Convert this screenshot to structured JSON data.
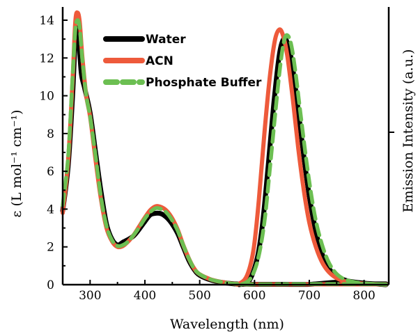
{
  "chart_data": {
    "type": "line",
    "xlabel": "Wavelength (nm)",
    "ylabel_left": "ε (L mol⁻¹ cm⁻¹)",
    "ylabel_right": "Emission Intensity (a.u.)",
    "xlim": [
      250,
      845
    ],
    "ylim": [
      0,
      14.7
    ],
    "x_ticks": [
      300,
      400,
      500,
      600,
      700,
      800
    ],
    "y_ticks": [
      0,
      2,
      4,
      6,
      8,
      10,
      12,
      14
    ],
    "grid": false,
    "legend_position": "top-left",
    "series": [
      {
        "name": "Water",
        "color": "#000000",
        "dash": "solid",
        "absorption": [
          [
            250,
            3.9
          ],
          [
            260,
            6.3
          ],
          [
            268,
            10.0
          ],
          [
            273,
            13.1
          ],
          [
            276,
            13.6
          ],
          [
            279,
            13.1
          ],
          [
            284,
            11.2
          ],
          [
            290,
            10.4
          ],
          [
            300,
            9.1
          ],
          [
            310,
            7.0
          ],
          [
            320,
            4.9
          ],
          [
            330,
            3.2
          ],
          [
            340,
            2.4
          ],
          [
            350,
            2.1
          ],
          [
            360,
            2.25
          ],
          [
            370,
            2.4
          ],
          [
            380,
            2.6
          ],
          [
            390,
            2.95
          ],
          [
            400,
            3.35
          ],
          [
            410,
            3.7
          ],
          [
            420,
            3.78
          ],
          [
            430,
            3.75
          ],
          [
            440,
            3.55
          ],
          [
            450,
            3.2
          ],
          [
            460,
            2.7
          ],
          [
            470,
            2.0
          ],
          [
            480,
            1.3
          ],
          [
            490,
            0.8
          ],
          [
            500,
            0.5
          ],
          [
            520,
            0.25
          ],
          [
            540,
            0.12
          ],
          [
            560,
            0.05
          ],
          [
            580,
            0.03
          ],
          [
            600,
            0.02
          ],
          [
            650,
            0.02
          ],
          [
            700,
            0.02
          ],
          [
            745,
            0.12
          ],
          [
            760,
            0.08
          ],
          [
            800,
            0.05
          ],
          [
            840,
            0.04
          ]
        ],
        "emission": [
          [
            572,
            0.0
          ],
          [
            590,
            0.2
          ],
          [
            605,
            1.4
          ],
          [
            615,
            3.3
          ],
          [
            625,
            6.3
          ],
          [
            635,
            9.5
          ],
          [
            645,
            12.1
          ],
          [
            653,
            13.0
          ],
          [
            660,
            12.8
          ],
          [
            668,
            11.8
          ],
          [
            680,
            9.2
          ],
          [
            690,
            6.8
          ],
          [
            700,
            4.7
          ],
          [
            710,
            3.1
          ],
          [
            720,
            1.9
          ],
          [
            735,
            0.9
          ],
          [
            750,
            0.45
          ],
          [
            770,
            0.2
          ],
          [
            800,
            0.08
          ],
          [
            840,
            0.0
          ]
        ]
      },
      {
        "name": "ACN",
        "color": "#ee5a3b",
        "dash": "solid",
        "absorption": [
          [
            250,
            3.8
          ],
          [
            260,
            6.6
          ],
          [
            268,
            10.8
          ],
          [
            273,
            13.9
          ],
          [
            277,
            14.4
          ],
          [
            281,
            13.9
          ],
          [
            286,
            12.0
          ],
          [
            293,
            10.0
          ],
          [
            300,
            8.9
          ],
          [
            310,
            6.6
          ],
          [
            320,
            4.5
          ],
          [
            330,
            3.0
          ],
          [
            340,
            2.3
          ],
          [
            350,
            2.0
          ],
          [
            360,
            2.05
          ],
          [
            370,
            2.3
          ],
          [
            380,
            2.65
          ],
          [
            390,
            3.1
          ],
          [
            400,
            3.55
          ],
          [
            410,
            3.95
          ],
          [
            420,
            4.15
          ],
          [
            430,
            4.1
          ],
          [
            440,
            3.9
          ],
          [
            450,
            3.5
          ],
          [
            460,
            2.9
          ],
          [
            470,
            2.1
          ],
          [
            480,
            1.4
          ],
          [
            490,
            0.85
          ],
          [
            500,
            0.55
          ],
          [
            520,
            0.28
          ],
          [
            540,
            0.14
          ],
          [
            560,
            0.05
          ],
          [
            580,
            0.03
          ],
          [
            600,
            0.02
          ],
          [
            700,
            0.02
          ],
          [
            800,
            0.02
          ],
          [
            840,
            0.02
          ]
        ],
        "emission": [
          [
            568,
            0.0
          ],
          [
            585,
            0.4
          ],
          [
            598,
            1.8
          ],
          [
            608,
            4.5
          ],
          [
            618,
            8.0
          ],
          [
            628,
            11.0
          ],
          [
            637,
            12.9
          ],
          [
            645,
            13.5
          ],
          [
            652,
            13.2
          ],
          [
            660,
            12.1
          ],
          [
            670,
            9.8
          ],
          [
            680,
            7.2
          ],
          [
            690,
            5.0
          ],
          [
            700,
            3.3
          ],
          [
            712,
            2.0
          ],
          [
            725,
            1.1
          ],
          [
            740,
            0.55
          ],
          [
            760,
            0.22
          ],
          [
            790,
            0.08
          ],
          [
            840,
            0.0
          ]
        ]
      },
      {
        "name": "Phosphate Buffer",
        "color": "#6cbf52",
        "dash": "dashed",
        "absorption": [
          [
            250,
            4.2
          ],
          [
            260,
            6.8
          ],
          [
            268,
            11.0
          ],
          [
            273,
            13.5
          ],
          [
            277,
            14.0
          ],
          [
            281,
            13.6
          ],
          [
            286,
            11.9
          ],
          [
            293,
            10.0
          ],
          [
            300,
            8.9
          ],
          [
            310,
            6.8
          ],
          [
            320,
            4.6
          ],
          [
            330,
            3.1
          ],
          [
            340,
            2.35
          ],
          [
            350,
            2.05
          ],
          [
            360,
            2.1
          ],
          [
            370,
            2.3
          ],
          [
            380,
            2.65
          ],
          [
            390,
            3.05
          ],
          [
            400,
            3.5
          ],
          [
            410,
            3.85
          ],
          [
            420,
            4.05
          ],
          [
            430,
            4.0
          ],
          [
            440,
            3.8
          ],
          [
            450,
            3.4
          ],
          [
            460,
            2.85
          ],
          [
            470,
            2.1
          ],
          [
            480,
            1.4
          ],
          [
            490,
            0.85
          ],
          [
            500,
            0.55
          ],
          [
            520,
            0.28
          ],
          [
            540,
            0.14
          ],
          [
            560,
            0.05
          ],
          [
            580,
            0.03
          ],
          [
            600,
            0.02
          ],
          [
            700,
            0.03
          ],
          [
            800,
            0.03
          ],
          [
            840,
            0.02
          ]
        ],
        "emission": [
          [
            576,
            0.0
          ],
          [
            592,
            0.3
          ],
          [
            606,
            1.3
          ],
          [
            618,
            3.3
          ],
          [
            628,
            6.1
          ],
          [
            638,
            9.1
          ],
          [
            647,
            11.6
          ],
          [
            654,
            12.9
          ],
          [
            660,
            13.2
          ],
          [
            667,
            12.7
          ],
          [
            675,
            11.2
          ],
          [
            685,
            8.8
          ],
          [
            695,
            6.5
          ],
          [
            705,
            4.5
          ],
          [
            715,
            3.0
          ],
          [
            728,
            1.7
          ],
          [
            742,
            0.85
          ],
          [
            760,
            0.35
          ],
          [
            790,
            0.1
          ],
          [
            840,
            0.0
          ]
        ]
      }
    ]
  }
}
